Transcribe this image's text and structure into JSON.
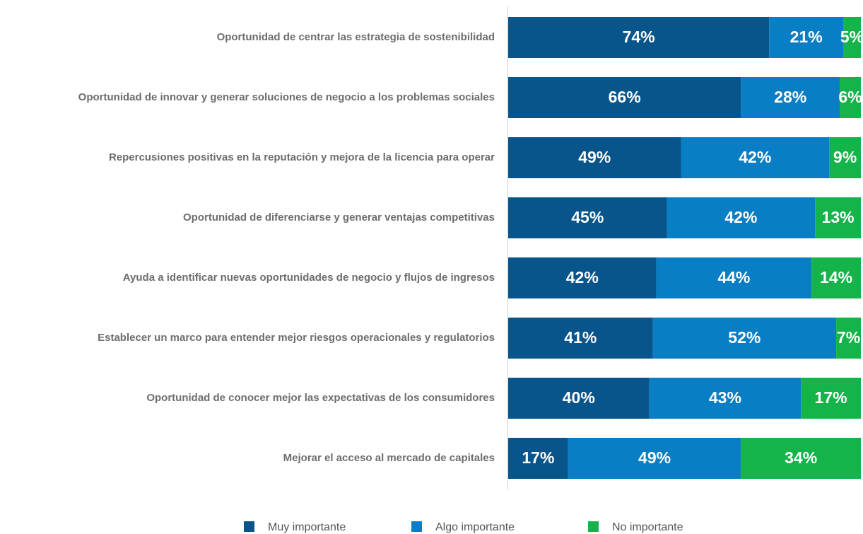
{
  "chart_data": {
    "type": "stacked-bar-horizontal",
    "categories": [
      "Oportunidad de centrar las estrategia de sostenibilidad",
      "Oportunidad de innovar y generar soluciones de negocio a los problemas sociales",
      "Repercusiones positivas en la reputación y mejora de la licencia para operar",
      "Oportunidad de diferenciarse y generar ventajas competitivas",
      "Ayuda a identificar nuevas oportunidades de negocio y flujos de ingresos",
      "Establecer un marco para entender mejor riesgos operacionales y regulatorios",
      "Oportunidad de conocer mejor las expectativas de los consumidores",
      "Mejorar el acceso al mercado de capitales"
    ],
    "xlim": [
      0,
      100
    ],
    "legend": "bottom",
    "series": [
      {
        "name": "Muy importante",
        "color": "#08558c",
        "values": [
          74,
          66,
          49,
          45,
          42,
          41,
          40,
          17
        ],
        "value_labels": [
          "74%",
          "66%",
          "49%",
          "45%",
          "42%",
          "41%",
          "40%",
          "17%"
        ]
      },
      {
        "name": "Algo importante",
        "color": "#0a7ec5",
        "values": [
          21,
          28,
          42,
          42,
          44,
          52,
          43,
          49
        ],
        "value_labels": [
          "21%",
          "28%",
          "42%",
          "42%",
          "44%",
          "52%",
          "43%",
          "49%"
        ]
      },
      {
        "name": "No importante",
        "color": "#14b44a",
        "values": [
          5,
          6,
          9,
          13,
          14,
          7,
          17,
          34
        ],
        "value_labels": [
          "5%",
          "6%",
          "9%",
          "13%",
          "14%",
          "7%",
          "17%",
          "34%"
        ]
      }
    ]
  }
}
